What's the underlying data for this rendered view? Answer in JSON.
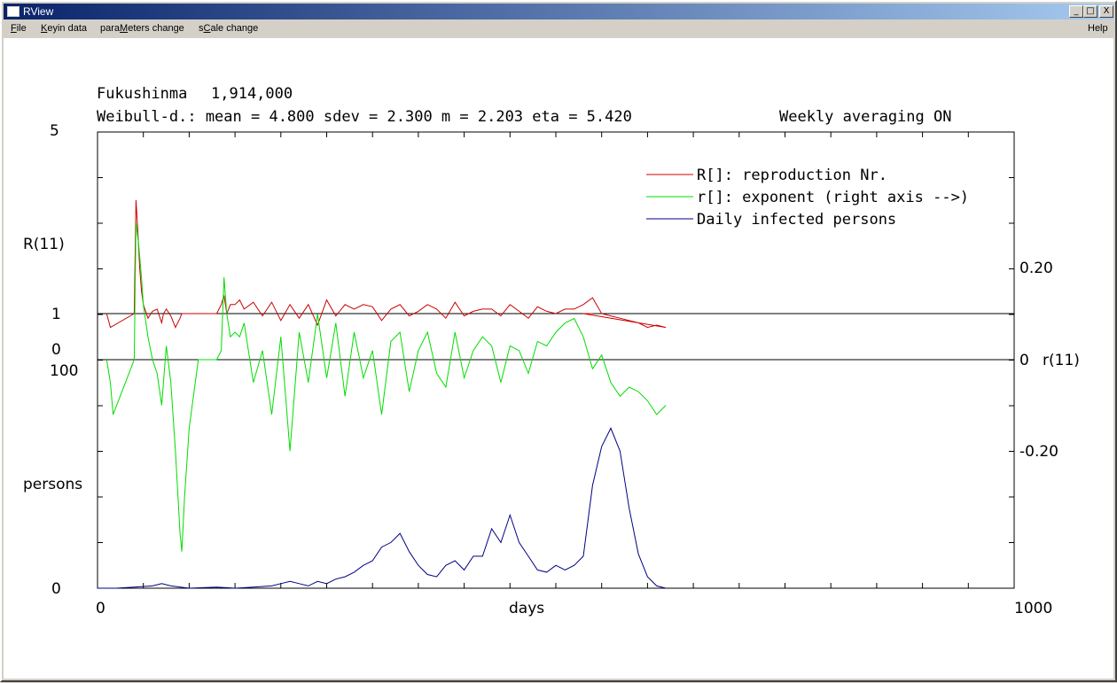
{
  "window": {
    "title": "RView",
    "buttons": {
      "minimize": "_",
      "maximize": "□",
      "close": "X"
    }
  },
  "menu": [
    {
      "pre": "",
      "acc": "F",
      "post": "ile"
    },
    {
      "pre": "",
      "acc": "K",
      "post": "eyin data"
    },
    {
      "pre": "para",
      "acc": "M",
      "post": "eters change"
    },
    {
      "pre": "s",
      "acc": "C",
      "post": "ale change"
    }
  ],
  "help_menu": "Help",
  "header": {
    "region": "Fukushinma",
    "population": "1,914,000",
    "params": "Weibull-d.:  mean =   4.800  sdev =   2.300  m =   2.203  eta =   5.420",
    "averaging": "Weekly averaging ON"
  },
  "axes": {
    "left_top_max": "5",
    "left_top_label": "R(11)",
    "left_one": "1",
    "left_zero": "0",
    "left_bottom_max": "100",
    "left_bottom_label": "persons",
    "left_bottom_zero": "0",
    "x_min": "0",
    "x_label": "days",
    "x_max": "1000",
    "right_pos": "0.20",
    "right_zero": "0",
    "right_label": "r(11)",
    "right_neg": "-0.20"
  },
  "legend": {
    "r_repro": "R[]: reproduction Nr.",
    "r_exp": "r[]: exponent (right axis -->)",
    "daily": "Daily infected persons"
  },
  "colors": {
    "R": "#cc0000",
    "r": "#00dd00",
    "daily": "#000080"
  },
  "chart_data": {
    "type": "line",
    "x_range": [
      0,
      1000
    ],
    "R_range": [
      0,
      5
    ],
    "r_range": [
      -0.5,
      0.5
    ],
    "daily_range": [
      0,
      100
    ],
    "series": [
      {
        "name": "R[]: reproduction Nr.",
        "x": [
          10,
          14,
          40,
          42,
          44,
          46,
          48,
          50,
          55,
          60,
          65,
          70,
          72,
          75,
          80,
          85,
          90,
          92,
          95,
          100,
          110,
          125,
          130,
          135,
          138,
          141,
          145,
          150,
          155,
          160,
          170,
          180,
          190,
          200,
          210,
          220,
          230,
          240,
          250,
          260,
          270,
          280,
          290,
          300,
          310,
          320,
          330,
          340,
          350,
          360,
          370,
          380,
          390,
          400,
          410,
          420,
          430,
          440,
          450,
          460,
          470,
          480,
          490,
          500,
          510,
          520,
          530,
          540,
          550,
          560,
          570,
          580,
          590,
          600,
          610,
          620,
          530,
          540
        ],
        "y": [
          1,
          0.7,
          1,
          3.5,
          2.8,
          2,
          1.5,
          1.2,
          0.9,
          1.05,
          1.1,
          0.8,
          1.0,
          1.1,
          0.95,
          0.7,
          0.9,
          1,
          1,
          1,
          1,
          1,
          1,
          1.2,
          1.4,
          1,
          1.2,
          1.2,
          1.3,
          1.1,
          1.25,
          0.95,
          1.25,
          0.85,
          1.2,
          0.9,
          1.2,
          0.75,
          1.3,
          0.95,
          1.2,
          1.1,
          1.2,
          1.15,
          0.85,
          1.1,
          1.2,
          0.95,
          1.05,
          1.2,
          1.1,
          0.9,
          1.25,
          0.95,
          1.05,
          1.1,
          1.1,
          0.95,
          1.2,
          1.05,
          0.9,
          1.15,
          1.05,
          1,
          1.1,
          1.1,
          1.2,
          1.35,
          1,
          0.95,
          0.9,
          0.85,
          0.8,
          0.7,
          0.75,
          0.7,
          1,
          1
        ],
        "color": "#cc0000"
      },
      {
        "name": "r[]: exponent (right axis -->)",
        "x": [
          10,
          14,
          17,
          40,
          42,
          45,
          48,
          50,
          55,
          60,
          65,
          70,
          75,
          80,
          85,
          90,
          92,
          95,
          100,
          110,
          120,
          125,
          130,
          135,
          138,
          141,
          145,
          150,
          155,
          160,
          170,
          180,
          190,
          200,
          210,
          220,
          230,
          240,
          250,
          260,
          270,
          280,
          290,
          300,
          310,
          320,
          330,
          340,
          350,
          360,
          370,
          380,
          390,
          400,
          410,
          420,
          430,
          440,
          450,
          460,
          470,
          480,
          490,
          500,
          510,
          520,
          530,
          540,
          550,
          560,
          570,
          580,
          590,
          600,
          610,
          620
        ],
        "y": [
          0,
          -0.05,
          -0.12,
          0,
          0.3,
          0.25,
          0.18,
          0.12,
          0.05,
          0,
          -0.03,
          -0.1,
          0.03,
          -0.05,
          -0.2,
          -0.38,
          -0.42,
          -0.3,
          -0.15,
          0,
          0,
          0,
          0,
          0.02,
          0.18,
          0.1,
          0.05,
          0.06,
          0.05,
          0.08,
          -0.05,
          0.02,
          -0.12,
          0.05,
          -0.2,
          0.06,
          -0.05,
          0.1,
          -0.04,
          0.08,
          -0.08,
          0.06,
          -0.04,
          0.02,
          -0.12,
          0.04,
          0.06,
          -0.07,
          0.02,
          0.06,
          -0.03,
          -0.06,
          0.06,
          -0.04,
          0.02,
          0.05,
          0.03,
          -0.05,
          0.03,
          0.02,
          -0.03,
          0.04,
          0.03,
          0.06,
          0.08,
          0.09,
          0.05,
          -0.02,
          0.01,
          -0.05,
          -0.08,
          -0.06,
          -0.07,
          -0.09,
          -0.12,
          -0.1
        ],
        "color": "#00dd00"
      },
      {
        "name": "Daily infected persons",
        "x": [
          0,
          20,
          40,
          60,
          70,
          80,
          100,
          130,
          150,
          170,
          190,
          200,
          210,
          220,
          230,
          240,
          250,
          260,
          270,
          280,
          290,
          300,
          310,
          320,
          330,
          340,
          350,
          360,
          370,
          380,
          390,
          400,
          410,
          420,
          430,
          440,
          450,
          460,
          470,
          480,
          490,
          500,
          510,
          520,
          530,
          540,
          550,
          560,
          570,
          580,
          590,
          600,
          610,
          620
        ],
        "y": [
          0,
          0,
          0.5,
          1,
          2,
          1,
          0,
          0.5,
          0,
          0.5,
          1,
          2,
          3,
          2,
          1,
          3,
          2,
          4,
          5,
          7,
          10,
          12,
          18,
          20,
          24,
          16,
          10,
          6,
          5,
          10,
          12,
          8,
          14,
          14,
          26,
          20,
          32,
          20,
          14,
          8,
          7,
          10,
          8,
          10,
          14,
          45,
          62,
          70,
          60,
          35,
          15,
          5,
          1,
          0
        ]
      }
    ]
  }
}
